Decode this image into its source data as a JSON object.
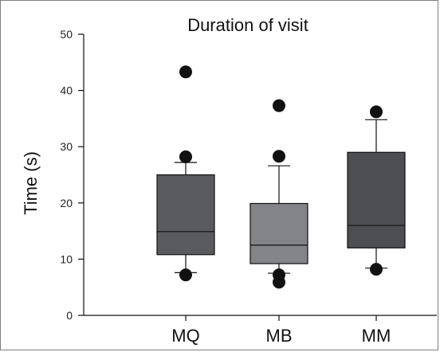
{
  "chart_data": {
    "type": "box",
    "title": "Duration of visit",
    "xlabel": "",
    "ylabel": "Time (s)",
    "ylim": [
      0,
      50
    ],
    "yticks": [
      "0",
      "10",
      "20",
      "30",
      "40",
      "50"
    ],
    "grid": false,
    "categories": [
      "MQ",
      "MB",
      "MM"
    ],
    "boxes": [
      {
        "name": "MQ",
        "whisker_low": 7.6,
        "q1": 10.8,
        "median": 14.9,
        "q3": 25.0,
        "whisker_high": 27.2,
        "outliers": [
          7.2,
          28.2,
          43.3
        ],
        "color": "#5a5b5e"
      },
      {
        "name": "MB",
        "whisker_low": 7.5,
        "q1": 9.2,
        "median": 12.5,
        "q3": 19.9,
        "whisker_high": 26.6,
        "outliers": [
          5.9,
          7.2,
          28.3,
          37.3
        ],
        "color": "#838488"
      },
      {
        "name": "MM",
        "whisker_low": 8.4,
        "q1": 12.0,
        "median": 16.0,
        "q3": 29.0,
        "whisker_high": 34.8,
        "outliers": [
          8.2,
          36.2
        ],
        "color": "#4d4e51"
      }
    ]
  }
}
